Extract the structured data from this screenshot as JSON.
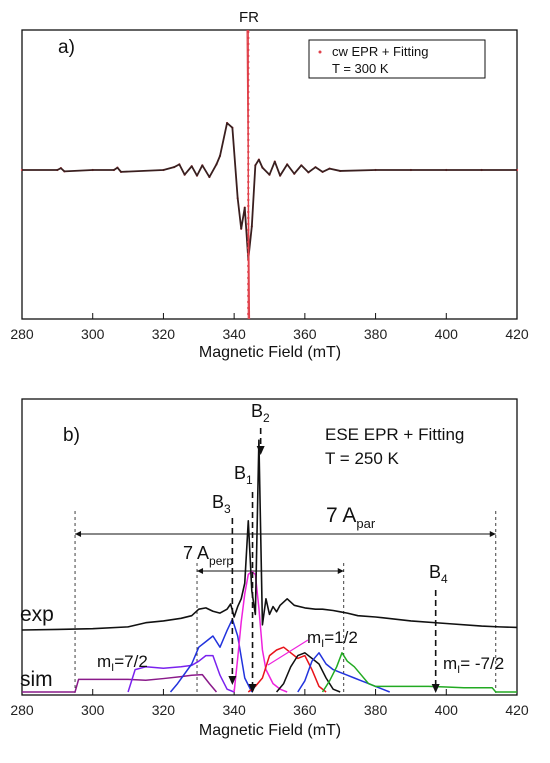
{
  "colors": {
    "axis": "#111111",
    "cw_trace": "#3a1f1f",
    "cw_fit": "#e0404a",
    "fr_label": "#2030d0",
    "exp_trace": "#111111",
    "mi_7_2": "#8a1a8a",
    "mi_1_2": "#ee22dd",
    "mi_m7_2": "#1a8a1a",
    "sim_purple": "#8a1a8a",
    "sim_violet": "#7a22ee",
    "sim_blue": "#2233dd",
    "sim_magenta": "#ee22dd",
    "sim_red": "#e8141a",
    "sim_black": "#111111",
    "sim_green": "#22aa22"
  },
  "chart_data": [
    {
      "type": "line",
      "panel_label": "a)",
      "xlabel": "Magnetic Field (mT)",
      "xlim": [
        280,
        420
      ],
      "x_ticks": [
        "280",
        "300",
        "320",
        "340",
        "360",
        "380",
        "400",
        "420"
      ],
      "marker_label": "FR",
      "marker_x": 344.0,
      "legend": {
        "entry": "cw EPR + Fitting",
        "line2": "T = 300 K",
        "placement": "top-right"
      },
      "series": [
        {
          "x": [
            280,
            290,
            291,
            292,
            300,
            306,
            307,
            308,
            320,
            323,
            324.5,
            326,
            328,
            329.5,
            331,
            333,
            335,
            336,
            338,
            339.5,
            341,
            342,
            343,
            344,
            345,
            346,
            347,
            348,
            350,
            351.5,
            353,
            355,
            357,
            359,
            361,
            363,
            365,
            367,
            370,
            380,
            390,
            400,
            410,
            420
          ],
          "y": [
            0,
            0,
            0.04,
            -0.03,
            0,
            0,
            0.05,
            -0.04,
            0,
            0.06,
            0.12,
            -0.1,
            0.08,
            -0.12,
            0.1,
            -0.15,
            0.12,
            0.3,
            1.0,
            0.9,
            -0.6,
            -1.25,
            -0.8,
            -1.9,
            -1.2,
            0.1,
            0.22,
            0.05,
            -0.1,
            0.18,
            -0.12,
            0.12,
            -0.08,
            0.1,
            -0.05,
            0.06,
            -0.04,
            0.03,
            -0.02,
            0,
            0,
            0,
            0,
            0
          ]
        }
      ]
    },
    {
      "type": "line",
      "panel_label": "b)",
      "xlabel": "Magnetic Field (mT)",
      "xlim": [
        280,
        420
      ],
      "x_ticks": [
        "280",
        "300",
        "320",
        "340",
        "360",
        "380",
        "400",
        "420"
      ],
      "title_line1": "ESE EPR + Fitting",
      "title_line2": "T = 250 K",
      "labels": {
        "exp": "exp",
        "sim": "sim"
      },
      "markers": [
        {
          "main": "B",
          "sub": "1"
        },
        {
          "main": "B",
          "sub": "2"
        },
        {
          "main": "B",
          "sub": "3"
        },
        {
          "main": "B",
          "sub": "4"
        }
      ],
      "spans": [
        {
          "main": "7 A",
          "sub": "par",
          "from": 295,
          "to": 414
        },
        {
          "main": "7 A",
          "sub": "perp",
          "from": 329.5,
          "to": 371
        }
      ],
      "mi_labels": [
        {
          "main": "m",
          "sub": "I",
          "rest": "=7/2"
        },
        {
          "main": "m",
          "sub": "I",
          "rest": "=1/2"
        },
        {
          "main": "m",
          "sub": "I",
          "rest": "= -7/2"
        }
      ],
      "exp_series": {
        "x": [
          280,
          290,
          300,
          310,
          315,
          320,
          325,
          328,
          330,
          332,
          334,
          336,
          338,
          339,
          340,
          341,
          342,
          343,
          344,
          345,
          346,
          347,
          348,
          349,
          350,
          351,
          352,
          353,
          355,
          357,
          360,
          363,
          365,
          368,
          370,
          372,
          375,
          380,
          390,
          400,
          410,
          415,
          420
        ],
        "y": [
          0,
          0.02,
          0.05,
          0.12,
          0.28,
          0.35,
          0.45,
          0.55,
          0.8,
          0.85,
          0.72,
          0.65,
          0.8,
          1.0,
          0.5,
          0.9,
          1.2,
          1.8,
          4.2,
          1.5,
          0.6,
          7.3,
          0.2,
          1.2,
          0.6,
          0.9,
          0.7,
          0.95,
          1.2,
          0.95,
          0.85,
          0.8,
          0.8,
          0.75,
          0.7,
          0.65,
          0.55,
          0.5,
          0.35,
          0.25,
          0.15,
          0.12,
          0.1
        ]
      },
      "sim_series": [
        {
          "name": "purple",
          "x": [
            280,
            295,
            296,
            310,
            315,
            320,
            325,
            328,
            331,
            333,
            335
          ],
          "y": [
            0,
            0,
            0.45,
            0.45,
            0.42,
            0.48,
            0.55,
            0.6,
            0.62,
            0.3,
            0
          ]
        },
        {
          "name": "violet",
          "x": [
            310,
            312,
            315,
            320,
            325,
            328,
            330,
            332,
            334,
            336,
            338,
            340
          ],
          "y": [
            0,
            0.8,
            0.9,
            0.85,
            0.9,
            0.95,
            1.1,
            1.3,
            1.3,
            0.6,
            0.1,
            0
          ]
        },
        {
          "name": "blue",
          "x": [
            322,
            324,
            328,
            330,
            332,
            334,
            336,
            338,
            339.5,
            341,
            343,
            345
          ],
          "y": [
            0,
            0.3,
            1.0,
            1.6,
            1.8,
            2.0,
            1.6,
            2.2,
            2.6,
            2.0,
            0.5,
            0
          ]
        },
        {
          "name": "magenta",
          "x": [
            340,
            341,
            342,
            343,
            344,
            345,
            346,
            347,
            348,
            349,
            351,
            353,
            355
          ],
          "y": [
            0,
            1.2,
            2.5,
            3.5,
            4.2,
            4.3,
            4.2,
            3.0,
            1.5,
            0.8,
            0.3,
            0.1,
            0
          ]
        },
        {
          "name": "red",
          "x": [
            344,
            346,
            348,
            350,
            352,
            354,
            356,
            358,
            360,
            362,
            364,
            366
          ],
          "y": [
            0,
            0.2,
            0.5,
            1.3,
            1.5,
            1.6,
            1.4,
            1.2,
            1.3,
            0.8,
            0.2,
            0
          ]
        },
        {
          "name": "black",
          "x": [
            352,
            354,
            356,
            358,
            360,
            362,
            364,
            366,
            368,
            370
          ],
          "y": [
            0,
            0.3,
            0.9,
            1.3,
            1.4,
            1.2,
            1.0,
            0.5,
            0.1,
            0
          ]
        },
        {
          "name": "blue2",
          "x": [
            358,
            360,
            362,
            364,
            366,
            368,
            370,
            372,
            374,
            376,
            378,
            380,
            382,
            384
          ],
          "y": [
            0,
            0.4,
            1.1,
            1.4,
            1.0,
            0.8,
            0.7,
            0.6,
            0.5,
            0.4,
            0.3,
            0.2,
            0.1,
            0
          ]
        },
        {
          "name": "green",
          "x": [
            365,
            367,
            369,
            370.5,
            372,
            374,
            376,
            378,
            380,
            385,
            390,
            395,
            400,
            405,
            410,
            413,
            414,
            420
          ],
          "y": [
            0,
            0.4,
            0.9,
            1.4,
            1.1,
            0.9,
            0.6,
            0.3,
            0.2,
            0.2,
            0.2,
            0.2,
            0.18,
            0.15,
            0.15,
            0.15,
            0,
            0
          ]
        }
      ]
    }
  ]
}
